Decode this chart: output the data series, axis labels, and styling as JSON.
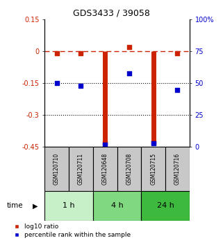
{
  "title": "GDS3433 / 39058",
  "samples": [
    "GSM120710",
    "GSM120711",
    "GSM120648",
    "GSM120708",
    "GSM120715",
    "GSM120716"
  ],
  "log10_ratio": [
    -0.01,
    -0.01,
    -0.43,
    0.02,
    -0.43,
    -0.01
  ],
  "percentile_rank": [
    50,
    48,
    2,
    58,
    3,
    45
  ],
  "groups": [
    {
      "label": "1 h",
      "indices": [
        0,
        1
      ],
      "color": "#c8f0c8"
    },
    {
      "label": "4 h",
      "indices": [
        2,
        3
      ],
      "color": "#80d880"
    },
    {
      "label": "24 h",
      "indices": [
        4,
        5
      ],
      "color": "#3dba3d"
    }
  ],
  "left_ylim": [
    -0.45,
    0.15
  ],
  "right_ylim": [
    0,
    100
  ],
  "left_yticks": [
    0.15,
    0.0,
    -0.15,
    -0.3,
    -0.45
  ],
  "left_yticklabels": [
    "0.15",
    "0",
    "-0.15",
    "-0.3",
    "-0.45"
  ],
  "right_yticks": [
    100,
    75,
    50,
    25,
    0
  ],
  "right_yticklabels": [
    "100%",
    "75",
    "50",
    "25",
    "0"
  ],
  "hlines_dotted": [
    -0.15,
    -0.3
  ],
  "red_color": "#cc2200",
  "blue_color": "#0000cc",
  "sample_box_color": "#c8c8c8",
  "legend_red": "log10 ratio",
  "legend_blue": "percentile rank within the sample"
}
